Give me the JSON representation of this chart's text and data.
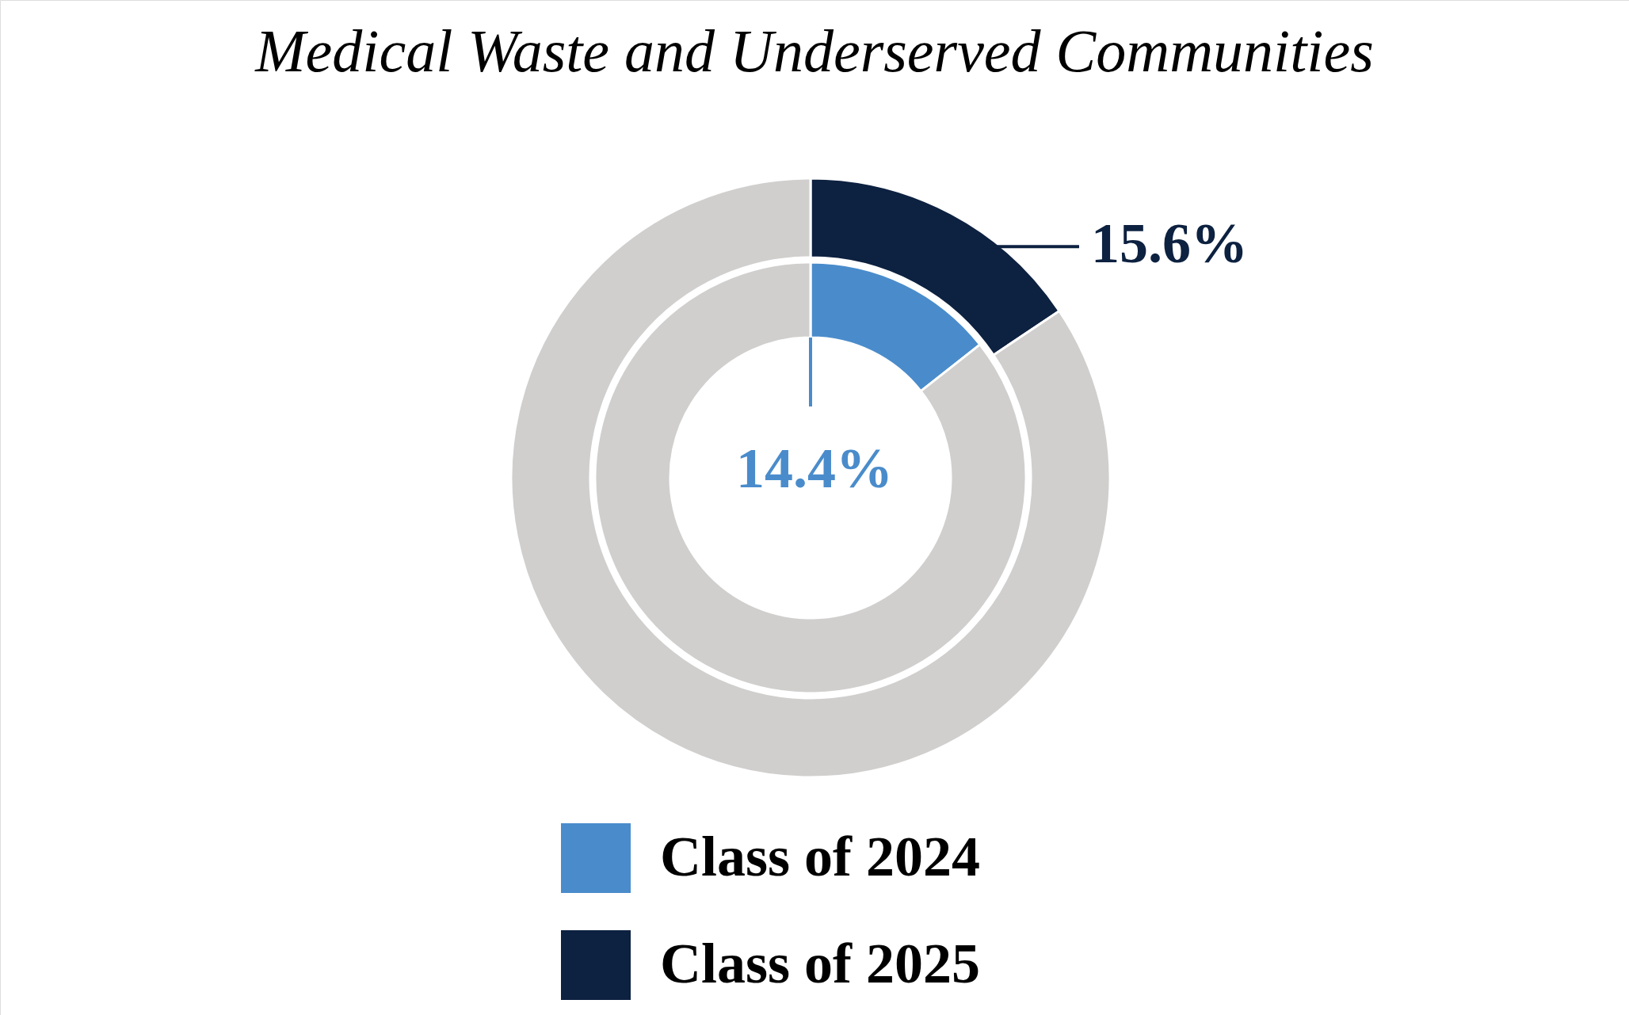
{
  "chart_data": {
    "type": "donut",
    "title": "Medical Waste and Underserved Communities",
    "categories": [
      null,
      null
    ],
    "series": [
      {
        "name": "Class of 2024",
        "color": "#4a8ccb",
        "colors": [
          "#4a8ccb",
          "#d0cfce"
        ],
        "values": [
          14.4,
          85.6
        ],
        "value_labels": [
          "14.4%",
          null
        ]
      },
      {
        "name": "Class of 2025",
        "color": "#0d2140",
        "colors": [
          "#0d2140",
          "#d0cfce"
        ],
        "values": [
          15.6,
          84.4
        ],
        "value_labels": [
          "15.6%",
          null
        ]
      }
    ],
    "legend": "bottom"
  }
}
